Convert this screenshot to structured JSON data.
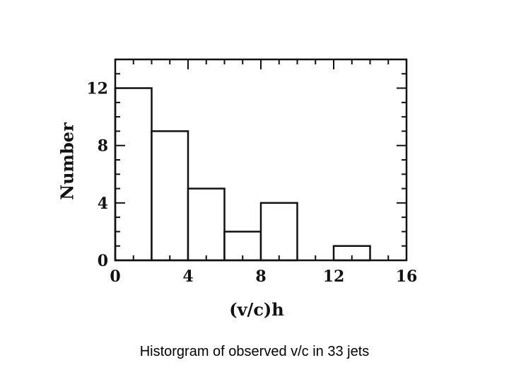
{
  "chart_data": {
    "type": "bar",
    "histogram": true,
    "bins": [
      {
        "x0": 0,
        "x1": 2,
        "value": 12
      },
      {
        "x0": 2,
        "x1": 4,
        "value": 9
      },
      {
        "x0": 4,
        "x1": 6,
        "value": 5
      },
      {
        "x0": 6,
        "x1": 8,
        "value": 2
      },
      {
        "x0": 8,
        "x1": 10,
        "value": 4
      },
      {
        "x0": 10,
        "x1": 12,
        "value": 0
      },
      {
        "x0": 12,
        "x1": 14,
        "value": 1
      },
      {
        "x0": 14,
        "x1": 16,
        "value": 0
      }
    ],
    "xlabel": "(v/c)h",
    "ylabel": "Number",
    "xlim": [
      0,
      16
    ],
    "ylim": [
      0,
      14
    ],
    "xticks": [
      0,
      4,
      8,
      12,
      16
    ],
    "yticks": [
      0,
      4,
      8,
      12
    ],
    "xminor": 1,
    "yminor": 1,
    "grid": false,
    "colors": {
      "stroke": "#111111",
      "fill": "#ffffff"
    }
  },
  "caption": "Historgram of observed v/c in 33 jets"
}
